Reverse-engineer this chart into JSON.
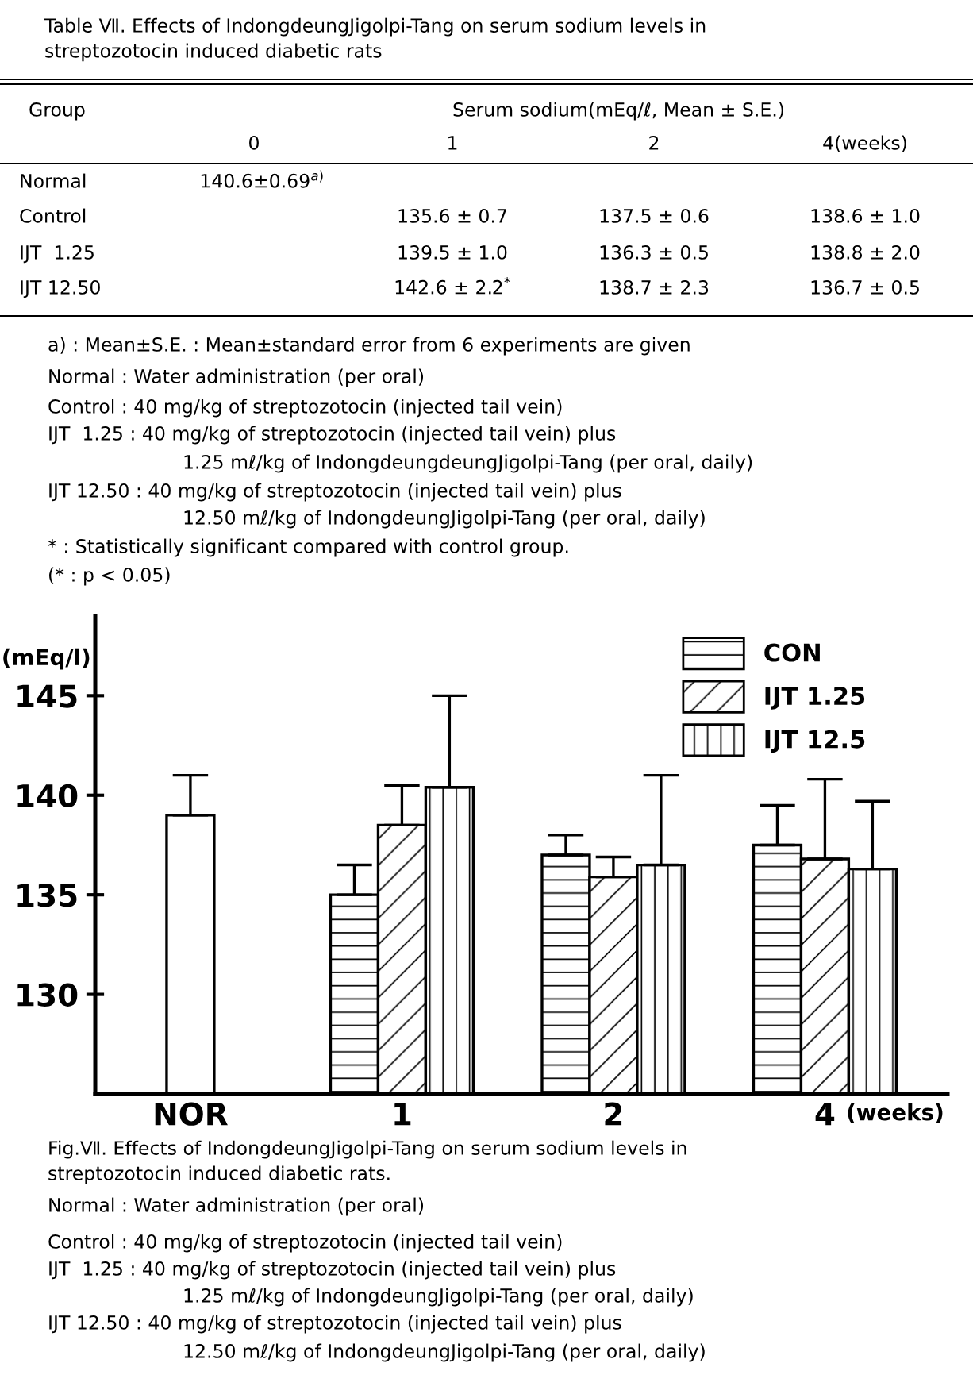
{
  "chart_data": {
    "type": "bar",
    "title": "Fig.Ⅶ. Effects of IndongdeungJigolpi-Tang on serum sodium levels in\nstreptozotocin induced diabetic rats.",
    "ylabel": "(mEq/l)",
    "xlabel": "(weeks)",
    "categories": [
      "NOR",
      "1",
      "2",
      "4"
    ],
    "series": [
      {
        "color": "#ffffff",
        "values": [
          139.0,
          null,
          null,
          null
        ],
        "errors": [
          [
            139.0,
            141.0
          ],
          null,
          null,
          null
        ]
      },
      {
        "name": "CON",
        "color": "#000000",
        "values": [
          null,
          135.0,
          137.0,
          137.5
        ],
        "errors": [
          null,
          [
            135.0,
            136.5
          ],
          [
            137.0,
            138.0
          ],
          [
            137.5,
            139.5
          ]
        ]
      },
      {
        "name": "IJT 1.25",
        "color": "#000000",
        "values": [
          null,
          138.5,
          135.9,
          136.8
        ],
        "errors": [
          null,
          [
            138.5,
            140.5
          ],
          [
            135.9,
            136.9
          ],
          [
            136.8,
            140.8
          ]
        ]
      },
      {
        "name": "IJT 12.5",
        "color": "#000000",
        "values": [
          null,
          140.4,
          136.5,
          136.3
        ],
        "errors": [
          null,
          [
            140.4,
            145.0
          ],
          [
            136.5,
            141.0
          ],
          [
            136.3,
            139.7
          ]
        ]
      }
    ],
    "ylim": [
      125,
      149
    ],
    "yticks": [
      130,
      135,
      140,
      145
    ],
    "legend": "top right",
    "annotations": [
      "Table Ⅶ. Effects of IndongdeungJigolpi-Tang on serum sodium levels in\nstreptozotocin induced diabetic rats",
      "Group",
      "Serum sodium(mEq/ℓ, Mean ± S.E.)",
      "0",
      "1",
      "2",
      "4(weeks)",
      "Normal",
      "140.6±0.69$^{a)}$",
      "Control",
      "135.6 ± 0.7",
      "137.5 ± 0.6",
      "138.6 ± 1.0",
      "IJT  1.25",
      "139.5 ± 1.0",
      "136.3 ± 0.5",
      "138.8 ± 2.0",
      "IJT 12.50",
      "142.6 ± 2.2$^{*}$",
      "138.7 ± 2.3",
      "136.7 ± 0.5",
      "a) : Mean±S.E. : Mean±standard error from 6 experiments are given",
      "Normal : Water administration (per oral)",
      "Control : 40 mg/kg of streptozotocin (injected tail vein)",
      "IJT  1.25 : 40 mg/kg of streptozotocin (injected tail vein) plus",
      "1.25 mℓ/kg of IndongdeungdeungJigolpi-Tang (per oral, daily)",
      "IJT 12.50 : 40 mg/kg of streptozotocin (injected tail vein) plus",
      "12.50 mℓ/kg of IndongdeungJigolpi-Tang (per oral, daily)",
      "* : Statistically significant compared with control group.",
      "(* : p < 0.05)",
      "Normal : Water administration (per oral)",
      "Control : 40 mg/kg of streptozotocin (injected tail vein)",
      "IJT  1.25 : 40 mg/kg of streptozotocin (injected tail vein) plus",
      "1.25 mℓ/kg of IndongdeungJigolpi-Tang (per oral, daily)",
      "IJT 12.50 : 40 mg/kg of streptozotocin (injected tail vein) plus",
      "12.50 mℓ/kg of IndongdeungJigolpi-Tang (per oral, daily)"
    ]
  }
}
